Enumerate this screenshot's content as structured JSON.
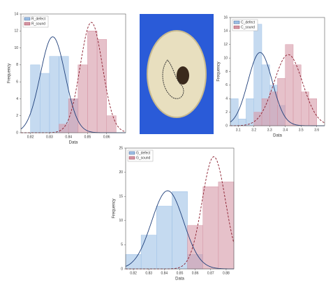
{
  "chart_data": [
    {
      "type": "histogram",
      "x_label": "Data",
      "y_label": "Frequency",
      "legend": "upper left",
      "xlim": [
        0.815,
        0.87
      ],
      "xticks": [
        0.82,
        0.83,
        0.84,
        0.85,
        0.86
      ],
      "ylim": [
        0,
        14
      ],
      "yticks": [
        0,
        2,
        4,
        6,
        8,
        10,
        12,
        14
      ],
      "series": [
        {
          "name": "R_defect",
          "color": "#9fc1e6",
          "line_color": "#1f3f7a",
          "bins": [
            0.82,
            0.825,
            0.83,
            0.835,
            0.84,
            0.845
          ],
          "values": [
            8,
            7,
            9,
            9,
            4
          ]
        },
        {
          "name": "R_sound",
          "color": "#d597a6",
          "line_color": "#8a1c2c",
          "bins": [
            0.835,
            0.84,
            0.845,
            0.85,
            0.855,
            0.86,
            0.865
          ],
          "values": [
            1,
            4,
            8,
            12,
            11,
            2
          ]
        }
      ]
    },
    {
      "type": "histogram",
      "x_label": "Data",
      "y_label": "Frequency",
      "legend": "upper left",
      "xlim": [
        3.05,
        3.65
      ],
      "xticks": [
        3.1,
        3.2,
        3.3,
        3.4,
        3.5,
        3.6
      ],
      "ylim": [
        0,
        16
      ],
      "yticks": [
        0,
        2,
        4,
        6,
        8,
        10,
        12,
        14,
        16
      ],
      "series": [
        {
          "name": "C_defect",
          "color": "#9fc1e6",
          "line_color": "#1f3f7a",
          "bins": [
            3.05,
            3.1,
            3.15,
            3.2,
            3.25,
            3.3,
            3.35,
            3.4
          ],
          "values": [
            4,
            1,
            4,
            15,
            9,
            6,
            3
          ]
        },
        {
          "name": "C_sound",
          "color": "#d597a6",
          "line_color": "#8a1c2c",
          "bins": [
            3.2,
            3.25,
            3.3,
            3.35,
            3.4,
            3.45,
            3.5,
            3.55,
            3.6
          ],
          "values": [
            2,
            4,
            5,
            7,
            12,
            9,
            5,
            4
          ]
        }
      ]
    },
    {
      "type": "histogram",
      "x_label": "Data",
      "y_label": "Frequency",
      "legend": "upper left",
      "xlim": [
        0.815,
        0.885
      ],
      "xticks": [
        0.82,
        0.83,
        0.84,
        0.85,
        0.86,
        0.87,
        0.88
      ],
      "ylim": [
        0,
        25
      ],
      "yticks": [
        0,
        5,
        10,
        15,
        20,
        25
      ],
      "series": [
        {
          "name": "G_defect",
          "color": "#9fc1e6",
          "line_color": "#1f3f7a",
          "bins": [
            0.815,
            0.825,
            0.835,
            0.845,
            0.855,
            0.865
          ],
          "values": [
            3,
            7,
            13,
            16,
            3
          ]
        },
        {
          "name": "G_sound",
          "color": "#d597a6",
          "line_color": "#8a1c2c",
          "bins": [
            0.855,
            0.865,
            0.875,
            0.885
          ],
          "values": [
            9,
            17,
            18
          ]
        }
      ]
    }
  ]
}
